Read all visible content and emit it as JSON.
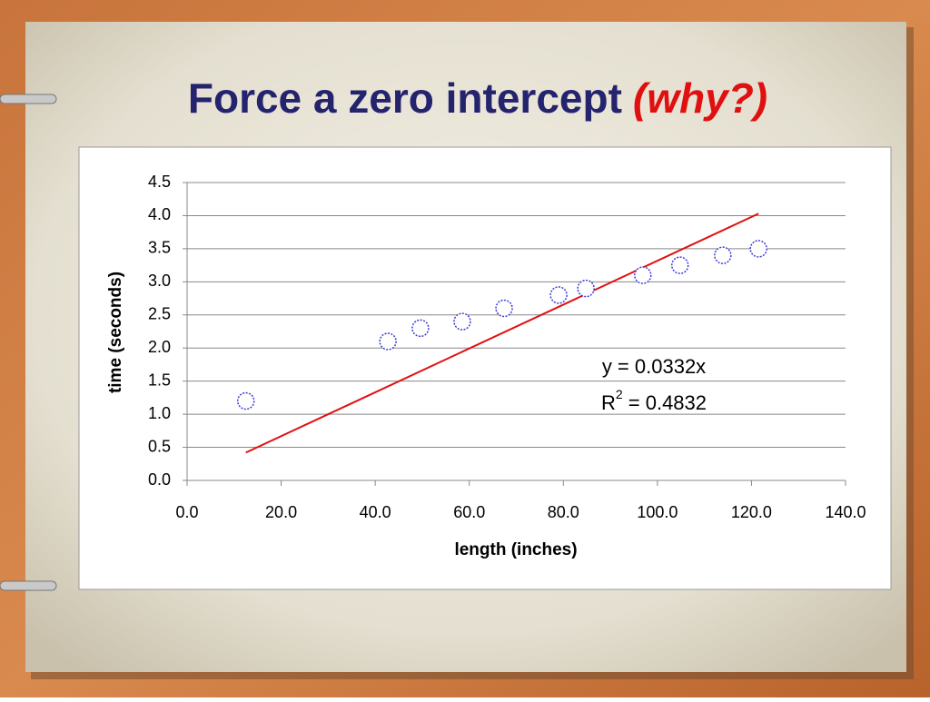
{
  "chart_data": {
    "type": "scatter",
    "title": "Force a zero intercept",
    "title_emphasis": "(why?)",
    "x_label": "length (inches)",
    "y_label": "time (seconds)",
    "series": [
      {
        "color": "#3b3bd8",
        "x": [
          12.5,
          42.7,
          49.6,
          58.5,
          67.4,
          79.0,
          84.8,
          96.9,
          104.8,
          113.9,
          121.5
        ],
        "values": [
          1.2,
          2.1,
          2.3,
          2.4,
          2.6,
          2.8,
          2.9,
          3.1,
          3.25,
          3.4,
          3.5
        ]
      }
    ],
    "trendline": {
      "color": "#e01010",
      "x": [
        12.5,
        121.5
      ],
      "values": [
        0.42,
        4.03
      ]
    },
    "equation": "y = 0.0332x",
    "r_squared": {
      "base": "R",
      "sup": "2",
      "text": " = 0.4832"
    },
    "xlim": [
      0,
      140
    ],
    "xticks": [
      {
        "value": 0,
        "label": "0.0"
      },
      {
        "value": 20,
        "label": "20.0"
      },
      {
        "value": 40,
        "label": "40.0"
      },
      {
        "value": 60,
        "label": "60.0"
      },
      {
        "value": 80,
        "label": "80.0"
      },
      {
        "value": 100,
        "label": "100.0"
      },
      {
        "value": 120,
        "label": "120.0"
      },
      {
        "value": 140,
        "label": "140.0"
      }
    ],
    "ylim": [
      0,
      4.5
    ],
    "yticks": [
      {
        "value": 0,
        "label": "0.0"
      },
      0.5,
      {
        "value": 1,
        "label": "1.0"
      },
      1.5,
      {
        "value": 2,
        "label": "2.0"
      },
      2.5,
      {
        "value": 3,
        "label": "3.0"
      },
      3.5,
      {
        "value": 4,
        "label": "4.0"
      },
      4.5
    ],
    "grid": true
  }
}
